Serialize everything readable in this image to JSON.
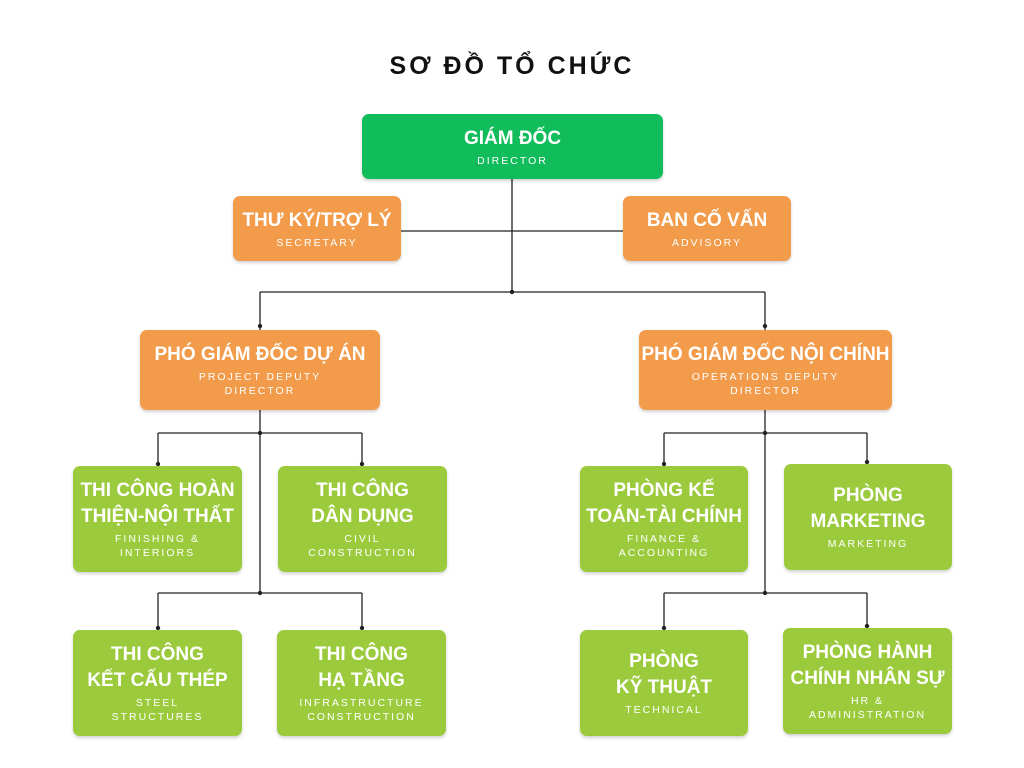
{
  "title": "SƠ ĐỒ TỔ CHỨC",
  "colors": {
    "director": "#11bc5b",
    "management": "#f29b4b",
    "department": "#9bcb3c",
    "line": "#222222"
  },
  "nodes": {
    "director": {
      "main": "GIÁM ĐỐC",
      "sub": "DIRECTOR"
    },
    "secretary": {
      "main": "THƯ KÝ/TRỢ LÝ",
      "sub": "SECRETARY"
    },
    "advisory": {
      "main": "BAN CỐ VẤN",
      "sub": "ADVISORY"
    },
    "project_deputy": {
      "main": "PHÓ GIÁM ĐỐC DỰ ÁN",
      "sub": "PROJECT DEPUTY\nDIRECTOR"
    },
    "operations_deputy": {
      "main": "PHÓ GIÁM ĐỐC NỘI CHÍNH",
      "sub": "OPERATIONS DEPUTY\nDIRECTOR"
    },
    "finishing": {
      "main": "THI CÔNG HOÀN\nTHIỆN-NỘI THẤT",
      "sub": "FINISHING &\nINTERIORS"
    },
    "civil": {
      "main": "THI CÔNG\nDÂN DỤNG",
      "sub": "CIVIL\nCONSTRUCTION"
    },
    "steel": {
      "main": "THI CÔNG\nKẾT CẤU THÉP",
      "sub": "STEEL\nSTRUCTURES"
    },
    "infrastructure": {
      "main": "THI CÔNG\nHẠ TẦNG",
      "sub": "INFRASTRUCTURE\nCONSTRUCTION"
    },
    "finance": {
      "main": "PHÒNG KẾ\nTOÁN-TÀI CHÍNH",
      "sub": "FINANCE &\nACCOUNTING"
    },
    "marketing": {
      "main": "PHÒNG\nMARKETING",
      "sub": "MARKETING"
    },
    "technical": {
      "main": "PHÒNG\nKỸ THUẬT",
      "sub": "TECHNICAL"
    },
    "hr": {
      "main": "PHÒNG HÀNH\nCHÍNH NHÂN SỰ",
      "sub": "HR &\nADMINISTRATION"
    }
  }
}
